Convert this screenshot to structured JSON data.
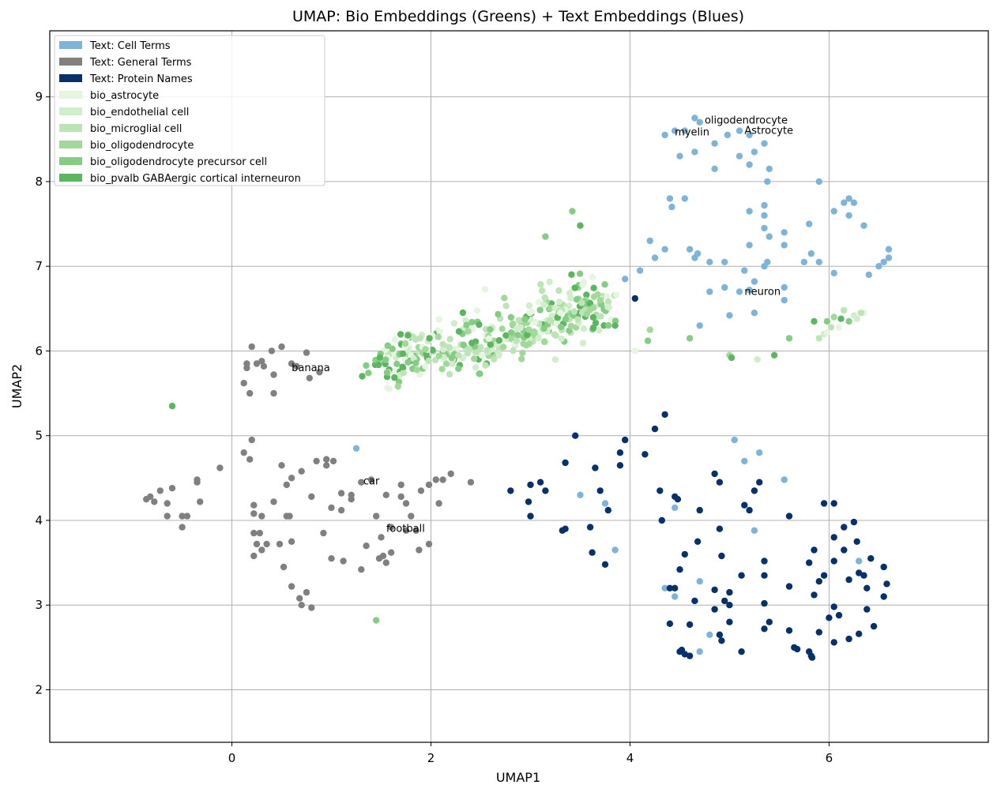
{
  "chart_data": {
    "type": "scatter",
    "title": "UMAP: Bio Embeddings (Greens) + Text Embeddings (Blues)",
    "xlabel": "UMAP1",
    "ylabel": "UMAP2",
    "xlim": [
      -1.83,
      7.6
    ],
    "ylim": [
      1.38,
      9.78
    ],
    "xticks": [
      0,
      2,
      4,
      6
    ],
    "yticks": [
      2,
      3,
      4,
      5,
      6,
      7,
      8,
      9
    ],
    "grid": true,
    "legend_position": "top-left",
    "series": [
      {
        "name": "Text: Cell Terms",
        "color": "#7fb4d8"
      },
      {
        "name": "Text: General Terms",
        "color": "#808080"
      },
      {
        "name": "Text: Protein Names",
        "color": "#08306b"
      },
      {
        "name": "bio_astrocyte",
        "color": "#e5f5e0"
      },
      {
        "name": "bio_endothelial cell",
        "color": "#d2edcb"
      },
      {
        "name": "bio_microglial cell",
        "color": "#bde4b6"
      },
      {
        "name": "bio_oligodendrocyte",
        "color": "#a2d99b"
      },
      {
        "name": "bio_oligodendrocyte precursor cell",
        "color": "#85cc84"
      },
      {
        "name": "bio_pvalb GABAergic cortical interneuron",
        "color": "#5cb561"
      }
    ],
    "points": {
      "cell": [
        [
          4.65,
          8.75
        ],
        [
          4.7,
          8.7
        ],
        [
          4.45,
          8.6
        ],
        [
          4.55,
          8.6
        ],
        [
          5.1,
          8.6
        ],
        [
          4.35,
          8.55
        ],
        [
          5.2,
          8.55
        ],
        [
          4.98,
          8.55
        ],
        [
          5.35,
          8.45
        ],
        [
          4.85,
          8.45
        ],
        [
          5.25,
          8.35
        ],
        [
          4.65,
          8.35
        ],
        [
          4.5,
          8.3
        ],
        [
          5.1,
          8.3
        ],
        [
          5.2,
          8.2
        ],
        [
          4.85,
          8.15
        ],
        [
          5.4,
          8.15
        ],
        [
          5.38,
          8.0
        ],
        [
          5.9,
          8.0
        ],
        [
          4.4,
          7.8
        ],
        [
          4.55,
          7.8
        ],
        [
          6.2,
          7.8
        ],
        [
          6.15,
          7.75
        ],
        [
          6.25,
          7.75
        ],
        [
          5.35,
          7.72
        ],
        [
          4.42,
          7.7
        ],
        [
          5.2,
          7.65
        ],
        [
          6.05,
          7.65
        ],
        [
          5.35,
          7.6
        ],
        [
          6.2,
          7.6
        ],
        [
          5.8,
          7.5
        ],
        [
          6.35,
          7.48
        ],
        [
          5.35,
          7.45
        ],
        [
          5.55,
          7.4
        ],
        [
          5.4,
          7.35
        ],
        [
          4.2,
          7.3
        ],
        [
          4.6,
          7.2
        ],
        [
          5.2,
          7.25
        ],
        [
          4.35,
          7.2
        ],
        [
          5.55,
          7.25
        ],
        [
          4.68,
          7.15
        ],
        [
          6.6,
          7.2
        ],
        [
          4.65,
          7.1
        ],
        [
          4.25,
          7.1
        ],
        [
          4.8,
          7.05
        ],
        [
          5.38,
          7.05
        ],
        [
          5.75,
          7.05
        ],
        [
          5.9,
          7.05
        ],
        [
          6.6,
          7.1
        ],
        [
          6.55,
          7.05
        ],
        [
          4.95,
          7.05
        ],
        [
          5.82,
          7.15
        ],
        [
          6.5,
          7.0
        ],
        [
          5.35,
          7.0
        ],
        [
          6.05,
          6.92
        ],
        [
          6.4,
          6.9
        ],
        [
          5.15,
          6.95
        ],
        [
          4.1,
          6.95
        ],
        [
          3.95,
          6.85
        ],
        [
          5.25,
          6.82
        ],
        [
          5.55,
          6.75
        ],
        [
          4.95,
          6.75
        ],
        [
          5.1,
          6.7
        ],
        [
          5.2,
          6.72
        ],
        [
          4.8,
          6.7
        ],
        [
          5.55,
          6.6
        ],
        [
          5.0,
          6.42
        ],
        [
          5.25,
          6.45
        ],
        [
          4.7,
          6.3
        ],
        [
          1.25,
          4.85
        ],
        [
          5.05,
          4.95
        ],
        [
          5.15,
          4.7
        ],
        [
          5.3,
          4.8
        ],
        [
          5.55,
          4.48
        ],
        [
          3.5,
          4.3
        ],
        [
          3.75,
          4.2
        ],
        [
          4.45,
          4.15
        ],
        [
          5.25,
          3.88
        ],
        [
          3.85,
          3.65
        ],
        [
          6.3,
          3.52
        ],
        [
          4.7,
          3.28
        ],
        [
          4.35,
          3.2
        ],
        [
          4.45,
          3.1
        ],
        [
          4.8,
          2.65
        ],
        [
          4.7,
          2.45
        ],
        [
          5.65,
          2.5
        ]
      ],
      "general": [
        [
          0.2,
          6.05
        ],
        [
          0.5,
          6.05
        ],
        [
          0.4,
          6.0
        ],
        [
          0.75,
          5.98
        ],
        [
          0.15,
          5.85
        ],
        [
          0.25,
          5.85
        ],
        [
          0.3,
          5.88
        ],
        [
          0.32,
          5.82
        ],
        [
          0.15,
          5.8
        ],
        [
          0.65,
          5.82
        ],
        [
          0.6,
          5.85
        ],
        [
          0.42,
          5.72
        ],
        [
          0.88,
          5.75
        ],
        [
          0.78,
          5.68
        ],
        [
          0.12,
          5.62
        ],
        [
          0.18,
          5.5
        ],
        [
          0.42,
          5.5
        ],
        [
          0.2,
          4.95
        ],
        [
          0.12,
          4.8
        ],
        [
          0.18,
          4.72
        ],
        [
          -0.12,
          4.62
        ],
        [
          0.5,
          4.65
        ],
        [
          0.6,
          4.5
        ],
        [
          0.55,
          4.42
        ],
        [
          0.7,
          4.58
        ],
        [
          0.85,
          4.7
        ],
        [
          0.95,
          4.72
        ],
        [
          1.02,
          4.7
        ],
        [
          0.95,
          4.65
        ],
        [
          1.3,
          4.45
        ],
        [
          1.4,
          4.48
        ],
        [
          1.7,
          4.42
        ],
        [
          1.98,
          4.42
        ],
        [
          2.05,
          4.48
        ],
        [
          2.12,
          4.48
        ],
        [
          2.2,
          4.55
        ],
        [
          2.4,
          4.45
        ],
        [
          1.9,
          4.35
        ],
        [
          -0.82,
          4.28
        ],
        [
          -0.72,
          4.35
        ],
        [
          -0.6,
          4.38
        ],
        [
          -0.35,
          4.45
        ],
        [
          -0.35,
          4.48
        ],
        [
          -0.78,
          4.22
        ],
        [
          -0.65,
          4.2
        ],
        [
          -0.32,
          4.22
        ],
        [
          -0.86,
          4.25
        ],
        [
          0.42,
          4.22
        ],
        [
          0.8,
          4.28
        ],
        [
          1.1,
          4.32
        ],
        [
          1.2,
          4.3
        ],
        [
          1.2,
          4.25
        ],
        [
          1.55,
          4.3
        ],
        [
          1.7,
          4.28
        ],
        [
          2.08,
          4.2
        ],
        [
          0.22,
          4.18
        ],
        [
          1.0,
          4.15
        ],
        [
          1.1,
          4.12
        ],
        [
          1.75,
          4.2
        ],
        [
          0.22,
          4.08
        ],
        [
          0.3,
          4.05
        ],
        [
          0.55,
          4.05
        ],
        [
          0.58,
          4.05
        ],
        [
          1.45,
          4.05
        ],
        [
          1.8,
          4.05
        ],
        [
          -0.65,
          4.05
        ],
        [
          -0.5,
          4.05
        ],
        [
          -0.45,
          4.05
        ],
        [
          -0.5,
          3.92
        ],
        [
          1.6,
          3.92
        ],
        [
          1.75,
          3.88
        ],
        [
          1.85,
          3.88
        ],
        [
          0.92,
          3.85
        ],
        [
          0.22,
          3.85
        ],
        [
          0.28,
          3.85
        ],
        [
          1.5,
          3.8
        ],
        [
          0.25,
          3.72
        ],
        [
          0.35,
          3.72
        ],
        [
          0.48,
          3.72
        ],
        [
          0.6,
          3.75
        ],
        [
          1.35,
          3.7
        ],
        [
          1.98,
          3.72
        ],
        [
          0.3,
          3.65
        ],
        [
          1.6,
          3.62
        ],
        [
          1.88,
          3.65
        ],
        [
          0.22,
          3.58
        ],
        [
          1.52,
          3.58
        ],
        [
          1.48,
          3.55
        ],
        [
          1.55,
          3.5
        ],
        [
          1.0,
          3.55
        ],
        [
          1.12,
          3.52
        ],
        [
          1.3,
          3.42
        ],
        [
          0.52,
          3.45
        ],
        [
          0.6,
          3.22
        ],
        [
          0.75,
          3.15
        ],
        [
          0.68,
          3.08
        ],
        [
          0.7,
          3.0
        ],
        [
          0.8,
          2.97
        ]
      ],
      "protein": [
        [
          4.35,
          5.25
        ],
        [
          4.25,
          5.08
        ],
        [
          3.45,
          5.0
        ],
        [
          3.95,
          4.95
        ],
        [
          4.15,
          4.78
        ],
        [
          3.9,
          4.8
        ],
        [
          3.35,
          4.68
        ],
        [
          3.65,
          4.62
        ],
        [
          3.9,
          4.65
        ],
        [
          4.85,
          4.55
        ],
        [
          4.9,
          4.45
        ],
        [
          2.8,
          4.35
        ],
        [
          3.1,
          4.45
        ],
        [
          3.0,
          4.42
        ],
        [
          3.15,
          4.35
        ],
        [
          3.7,
          4.35
        ],
        [
          4.3,
          4.35
        ],
        [
          5.3,
          4.45
        ],
        [
          5.25,
          4.35
        ],
        [
          4.45,
          4.28
        ],
        [
          4.48,
          4.25
        ],
        [
          2.98,
          4.22
        ],
        [
          5.15,
          4.18
        ],
        [
          5.2,
          4.12
        ],
        [
          5.95,
          4.2
        ],
        [
          6.05,
          4.2
        ],
        [
          3.78,
          4.12
        ],
        [
          4.7,
          4.12
        ],
        [
          3.0,
          4.05
        ],
        [
          4.32,
          4.0
        ],
        [
          5.6,
          4.05
        ],
        [
          6.25,
          3.98
        ],
        [
          6.15,
          3.92
        ],
        [
          3.6,
          3.92
        ],
        [
          4.9,
          3.9
        ],
        [
          3.35,
          3.9
        ],
        [
          3.32,
          3.88
        ],
        [
          6.05,
          3.8
        ],
        [
          6.28,
          3.75
        ],
        [
          4.68,
          3.75
        ],
        [
          5.85,
          3.65
        ],
        [
          6.15,
          3.65
        ],
        [
          3.62,
          3.62
        ],
        [
          4.55,
          3.6
        ],
        [
          4.92,
          3.58
        ],
        [
          6.42,
          3.55
        ],
        [
          5.8,
          3.5
        ],
        [
          6.05,
          3.52
        ],
        [
          5.35,
          3.52
        ],
        [
          3.75,
          3.48
        ],
        [
          4.5,
          3.42
        ],
        [
          6.55,
          3.45
        ],
        [
          5.95,
          3.35
        ],
        [
          6.3,
          3.38
        ],
        [
          6.35,
          3.35
        ],
        [
          5.12,
          3.35
        ],
        [
          5.35,
          3.35
        ],
        [
          5.9,
          3.28
        ],
        [
          6.2,
          3.3
        ],
        [
          6.58,
          3.25
        ],
        [
          4.45,
          3.2
        ],
        [
          5.6,
          3.22
        ],
        [
          6.38,
          3.2
        ],
        [
          4.4,
          3.2
        ],
        [
          4.85,
          3.18
        ],
        [
          6.55,
          3.1
        ],
        [
          5.0,
          3.15
        ],
        [
          5.85,
          3.12
        ],
        [
          4.65,
          3.05
        ],
        [
          4.95,
          3.05
        ],
        [
          5.35,
          3.02
        ],
        [
          5.0,
          3.0
        ],
        [
          6.05,
          2.98
        ],
        [
          4.85,
          2.95
        ],
        [
          6.38,
          2.95
        ],
        [
          5.4,
          2.8
        ],
        [
          4.4,
          2.78
        ],
        [
          4.6,
          2.77
        ],
        [
          5.0,
          2.8
        ],
        [
          6.1,
          2.88
        ],
        [
          6.0,
          2.85
        ],
        [
          6.45,
          2.75
        ],
        [
          5.35,
          2.72
        ],
        [
          5.6,
          2.7
        ],
        [
          5.9,
          2.68
        ],
        [
          6.3,
          2.66
        ],
        [
          4.9,
          2.65
        ],
        [
          6.2,
          2.6
        ],
        [
          4.92,
          2.58
        ],
        [
          6.05,
          2.56
        ],
        [
          5.65,
          2.5
        ],
        [
          5.68,
          2.48
        ],
        [
          4.52,
          2.47
        ],
        [
          4.5,
          2.45
        ],
        [
          4.55,
          2.42
        ],
        [
          4.6,
          2.4
        ],
        [
          5.12,
          2.45
        ],
        [
          5.8,
          2.45
        ],
        [
          5.82,
          2.4
        ],
        [
          5.83,
          2.38
        ],
        [
          4.05,
          6.62
        ]
      ]
    },
    "annotations": [
      {
        "text": "oligodendrocyte",
        "x": 4.75,
        "y": 8.72
      },
      {
        "text": "myelin",
        "x": 4.45,
        "y": 8.58
      },
      {
        "text": "Astrocyte",
        "x": 5.15,
        "y": 8.6
      },
      {
        "text": "neuron",
        "x": 5.15,
        "y": 6.7
      },
      {
        "text": "banana",
        "x": 0.6,
        "y": 5.8
      },
      {
        "text": "car",
        "x": 1.32,
        "y": 4.46
      },
      {
        "text": "football",
        "x": 1.55,
        "y": 3.9
      }
    ]
  }
}
